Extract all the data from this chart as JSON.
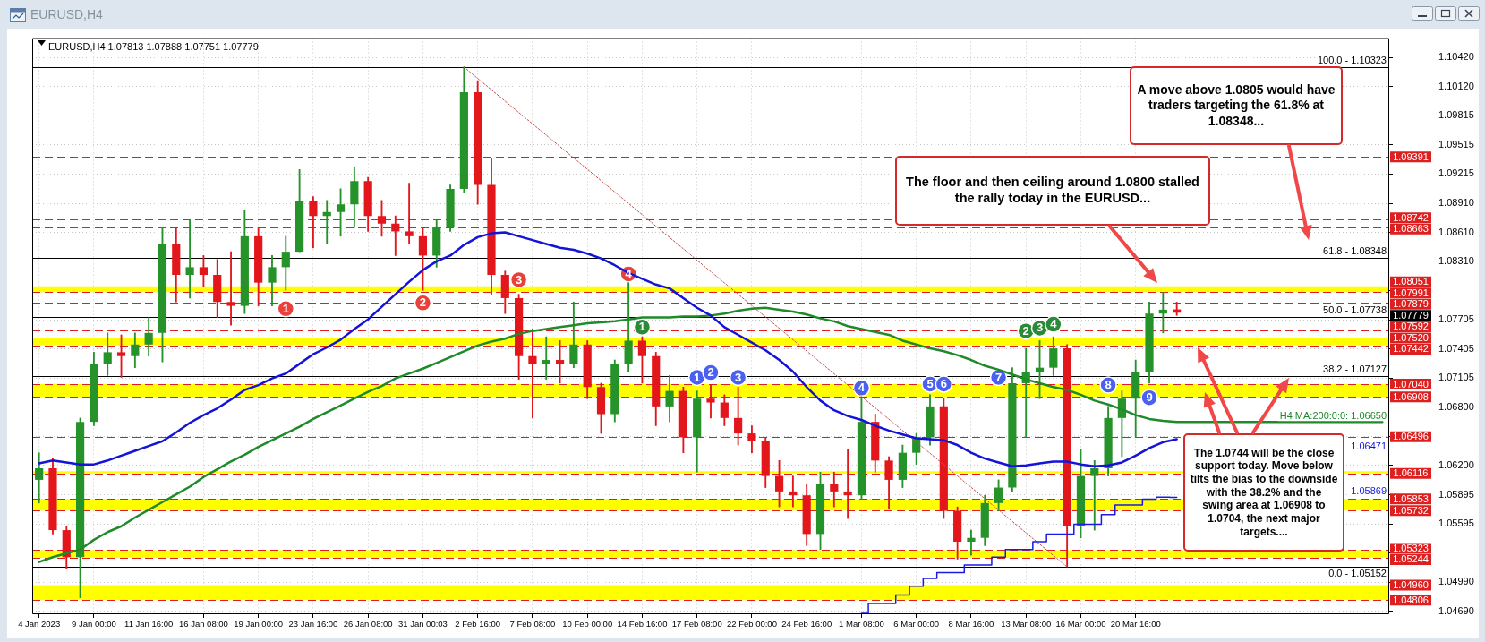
{
  "chart_data": {
    "type": "candlestick",
    "title": "EURUSD,H4",
    "subtitle": "EURUSD,H4 1.07813 1.07888 1.07751 1.07779",
    "categories": [
      "4 Jan 2023",
      null,
      null,
      null,
      "9 Jan 00:00",
      null,
      null,
      null,
      "11 Jan 16:00",
      null,
      null,
      null,
      "16 Jan 08:00",
      null,
      null,
      null,
      "19 Jan 00:00",
      null,
      null,
      null,
      "23 Jan 16:00",
      null,
      null,
      null,
      "26 Jan 08:00",
      null,
      null,
      null,
      "31 Jan 00:03",
      null,
      null,
      null,
      "2 Feb 16:00",
      null,
      null,
      null,
      "7 Feb 08:00",
      null,
      null,
      null,
      "10 Feb 00:00",
      null,
      null,
      null,
      "14 Feb 16:00",
      null,
      null,
      null,
      "17 Feb 08:00",
      null,
      null,
      null,
      "22 Feb 00:00",
      null,
      null,
      null,
      "24 Feb 16:00",
      null,
      null,
      null,
      "1 Mar 08:00",
      null,
      null,
      null,
      "6 Mar 00:00",
      null,
      null,
      null,
      "8 Mar 16:00",
      null,
      null,
      null,
      "13 Mar 08:00",
      null,
      null,
      null,
      "16 Mar 00:00",
      null,
      null,
      null,
      "20 Mar 16:00",
      null,
      null,
      null,
      null,
      null,
      null,
      null,
      null,
      null,
      null,
      null,
      null,
      null,
      null,
      null,
      null,
      null,
      null
    ],
    "ohlc": [
      [
        1.0605,
        1.0633,
        1.0581,
        1.0617
      ],
      [
        1.0617,
        1.0627,
        1.0549,
        1.0553
      ],
      [
        1.0553,
        1.0557,
        1.0513,
        1.0525
      ],
      [
        1.0525,
        1.0669,
        1.0483,
        1.0665
      ],
      [
        1.0665,
        1.0737,
        1.0661,
        1.0725
      ],
      [
        1.0725,
        1.0757,
        1.0713,
        1.0737
      ],
      [
        1.0737,
        1.0755,
        1.0711,
        1.0733
      ],
      [
        1.0733,
        1.0757,
        1.0721,
        1.0745
      ],
      [
        1.0745,
        1.0773,
        1.0733,
        1.0757
      ],
      [
        1.0757,
        1.0866,
        1.0727,
        1.0849
      ],
      [
        1.0849,
        1.0866,
        1.0789,
        1.0817
      ],
      [
        1.0817,
        1.0874,
        1.0793,
        1.0825
      ],
      [
        1.0825,
        1.0837,
        1.0805,
        1.0817
      ],
      [
        1.0817,
        1.0833,
        1.0773,
        1.0789
      ],
      [
        1.0789,
        1.0841,
        1.0765,
        1.0785
      ],
      [
        1.0785,
        1.0884,
        1.0777,
        1.0857
      ],
      [
        1.0857,
        1.0866,
        1.0785,
        1.0809
      ],
      [
        1.0809,
        1.0837,
        1.0785,
        1.0825
      ],
      [
        1.0825,
        1.0857,
        1.0801,
        1.0841
      ],
      [
        1.0841,
        1.0926,
        1.0841,
        1.0894
      ],
      [
        1.0894,
        1.0898,
        1.0845,
        1.0878
      ],
      [
        1.0878,
        1.0894,
        1.0849,
        1.0882
      ],
      [
        1.0882,
        1.0906,
        1.0857,
        1.089
      ],
      [
        1.089,
        1.0928,
        1.0866,
        1.0914
      ],
      [
        1.0914,
        1.0918,
        1.0862,
        1.0878
      ],
      [
        1.0878,
        1.0894,
        1.0857,
        1.087
      ],
      [
        1.087,
        1.0878,
        1.0837,
        1.0862
      ],
      [
        1.0862,
        1.0912,
        1.0849,
        1.0857
      ],
      [
        1.0857,
        1.0866,
        1.0801,
        1.0837
      ],
      [
        1.0837,
        1.0874,
        1.0825,
        1.0866
      ],
      [
        1.0866,
        1.091,
        1.0862,
        1.0906
      ],
      [
        1.0906,
        1.1032,
        1.0902,
        1.1006
      ],
      [
        1.1006,
        1.1018,
        1.089,
        1.091
      ],
      [
        1.091,
        1.0938,
        1.0797,
        1.0817
      ],
      [
        1.0817,
        1.0821,
        1.0777,
        1.0793
      ],
      [
        1.0793,
        1.0797,
        1.0709,
        1.0733
      ],
      [
        1.0733,
        1.0761,
        1.0669,
        1.0725
      ],
      [
        1.0725,
        1.0753,
        1.0709,
        1.0729
      ],
      [
        1.0729,
        1.0749,
        1.0705,
        1.0725
      ],
      [
        1.0725,
        1.0789,
        1.0721,
        1.0745
      ],
      [
        1.0745,
        1.0749,
        1.0689,
        1.0701
      ],
      [
        1.0701,
        1.0705,
        1.0653,
        1.0673
      ],
      [
        1.0673,
        1.0729,
        1.0665,
        1.0725
      ],
      [
        1.0725,
        1.0809,
        1.0717,
        1.0749
      ],
      [
        1.0749,
        1.0753,
        1.0705,
        1.0733
      ],
      [
        1.0733,
        1.0737,
        1.0661,
        1.0681
      ],
      [
        1.0681,
        1.0713,
        1.0665,
        1.0697
      ],
      [
        1.0697,
        1.0701,
        1.0633,
        1.0649
      ],
      [
        1.0649,
        1.0697,
        1.0613,
        1.0689
      ],
      [
        1.0689,
        1.0703,
        1.0669,
        1.0685
      ],
      [
        1.0685,
        1.0693,
        1.0661,
        1.0669
      ],
      [
        1.0669,
        1.0701,
        1.0641,
        1.0653
      ],
      [
        1.0653,
        1.0661,
        1.0633,
        1.0645
      ],
      [
        1.0645,
        1.0649,
        1.0597,
        1.0609
      ],
      [
        1.0609,
        1.0625,
        1.0577,
        1.0593
      ],
      [
        1.0593,
        1.0609,
        1.0577,
        1.0589
      ],
      [
        1.0589,
        1.0601,
        1.0537,
        1.0549
      ],
      [
        1.0549,
        1.0613,
        1.0533,
        1.0601
      ],
      [
        1.0601,
        1.0613,
        1.0577,
        1.0593
      ],
      [
        1.0593,
        1.0637,
        1.0565,
        1.0589
      ],
      [
        1.0589,
        1.0689,
        1.0585,
        1.0665
      ],
      [
        1.0665,
        1.0673,
        1.0613,
        1.0625
      ],
      [
        1.0625,
        1.0629,
        1.0575,
        1.0605
      ],
      [
        1.0605,
        1.0641,
        1.0597,
        1.0633
      ],
      [
        1.0633,
        1.0653,
        1.0621,
        1.0649
      ],
      [
        1.0649,
        1.0693,
        1.0641,
        1.0681
      ],
      [
        1.0681,
        1.0689,
        1.0565,
        1.0573
      ],
      [
        1.0573,
        1.0577,
        1.0523,
        1.0541
      ],
      [
        1.0541,
        1.0553,
        1.0527,
        1.0545
      ],
      [
        1.0545,
        1.0589,
        1.0537,
        1.0581
      ],
      [
        1.0581,
        1.0605,
        1.0573,
        1.0597
      ],
      [
        1.0597,
        1.0721,
        1.0593,
        1.0705
      ],
      [
        1.0705,
        1.0741,
        1.0649,
        1.0717
      ],
      [
        1.0717,
        1.0749,
        1.0689,
        1.0721
      ],
      [
        1.0721,
        1.0753,
        1.0713,
        1.0741
      ],
      [
        1.0741,
        1.0745,
        1.0515,
        1.0557
      ],
      [
        1.0557,
        1.0637,
        1.0545,
        1.0609
      ],
      [
        1.0609,
        1.0625,
        1.0553,
        1.0617
      ],
      [
        1.0617,
        1.0681,
        1.0609,
        1.0669
      ],
      [
        1.0669,
        1.0697,
        1.0629,
        1.0689
      ],
      [
        1.0689,
        1.0729,
        1.0649,
        1.0717
      ],
      [
        1.0717,
        1.0789,
        1.0705,
        1.0777
      ],
      [
        1.0777,
        1.0799,
        1.0757,
        1.0781
      ],
      [
        1.07813,
        1.07888,
        1.07751,
        1.07779
      ],
      null,
      null,
      null,
      null,
      null,
      null,
      null,
      null,
      null,
      null,
      null,
      null,
      null,
      null,
      null
    ],
    "colors": [
      "#26922a",
      "#e3161c",
      "#e3161c",
      "#26922a",
      "#26922a",
      "#26922a",
      "#e3161c",
      "#26922a",
      "#26922a",
      "#26922a",
      "#e3161c",
      "#26922a",
      "#e3161c",
      "#e3161c",
      "#e3161c",
      "#26922a",
      "#e3161c",
      "#26922a",
      "#26922a",
      "#26922a",
      "#e3161c",
      "#26922a",
      "#26922a",
      "#26922a",
      "#e3161c",
      "#e3161c",
      "#e3161c",
      "#e3161c",
      "#e3161c",
      "#26922a",
      "#26922a",
      "#26922a",
      "#e3161c",
      "#e3161c",
      "#e3161c",
      "#e3161c",
      "#e3161c",
      "#26922a",
      "#e3161c",
      "#26922a",
      "#e3161c",
      "#e3161c",
      "#26922a",
      "#26922a",
      "#e3161c",
      "#e3161c",
      "#26922a",
      "#e3161c",
      "#26922a",
      "#e3161c",
      "#e3161c",
      "#e3161c",
      "#e3161c",
      "#e3161c",
      "#e3161c",
      "#e3161c",
      "#e3161c",
      "#26922a",
      "#e3161c",
      "#e3161c",
      "#26922a",
      "#e3161c",
      "#e3161c",
      "#26922a",
      "#26922a",
      "#26922a",
      "#e3161c",
      "#e3161c",
      "#26922a",
      "#26922a",
      "#26922a",
      "#26922a",
      "#26922a",
      "#26922a",
      "#26922a",
      "#e3161c",
      "#26922a",
      "#26922a",
      "#26922a",
      "#26922a",
      "#26922a",
      "#26922a",
      "#26922a",
      "#e3161c",
      null,
      null,
      null,
      null,
      null,
      null,
      null,
      null,
      null,
      null,
      null,
      null,
      null,
      null,
      null
    ],
    "value_labels": [
      null,
      null,
      null,
      null,
      null,
      null,
      null,
      null,
      null,
      null,
      null,
      null,
      null,
      null,
      null,
      null,
      null,
      null,
      null,
      null,
      null,
      null,
      null,
      null,
      null,
      null,
      null,
      null,
      null,
      null,
      null,
      null,
      null,
      null,
      null,
      null,
      null,
      null,
      null,
      null,
      null,
      null,
      null,
      null,
      null,
      null,
      null,
      null,
      null,
      null,
      null,
      null,
      null,
      null,
      null,
      null,
      null,
      null,
      null,
      null,
      null,
      null,
      null,
      null,
      null,
      null,
      null,
      null,
      null,
      null,
      null,
      null,
      null,
      null,
      null,
      null,
      null,
      null,
      null,
      null,
      null,
      null,
      null,
      "1.07779",
      null,
      null,
      null,
      null,
      null,
      null,
      null,
      null,
      null,
      null,
      null,
      null,
      null,
      null,
      null
    ],
    "series": [
      {
        "type": "line",
        "color": "#1414d8",
        "values": [
          1.0622,
          1.0625,
          1.0623,
          1.0621,
          1.0621,
          1.0625,
          1.063,
          1.0635,
          1.064,
          1.0645,
          1.0654,
          1.0664,
          1.0672,
          1.0679,
          1.0688,
          1.0698,
          1.0703,
          1.071,
          1.0715,
          1.0725,
          1.0735,
          1.0742,
          1.075,
          1.0761,
          1.0771,
          1.0784,
          1.0797,
          1.081,
          1.0822,
          1.0831,
          1.0837,
          1.0848,
          1.0856,
          1.086,
          1.0861,
          1.0857,
          1.0853,
          1.0849,
          1.0845,
          1.0843,
          1.0839,
          1.0834,
          1.0827,
          1.0819,
          1.0813,
          1.0807,
          1.0803,
          1.0793,
          1.0783,
          1.0775,
          1.0763,
          1.0755,
          1.0747,
          1.0739,
          1.0729,
          1.0717,
          1.0701,
          1.0687,
          1.0677,
          1.0671,
          1.0667,
          1.0661,
          1.0656,
          1.0652,
          1.0648,
          1.0647,
          1.0646,
          1.0641,
          1.0633,
          1.0627,
          1.0623,
          1.0619,
          1.062,
          1.0622,
          1.0624,
          1.0624,
          1.0621,
          1.0619,
          1.062,
          1.0623,
          1.063,
          1.0638,
          1.0644,
          1.06471,
          null,
          null,
          null,
          null,
          null,
          null,
          null,
          null,
          null,
          null,
          null,
          null,
          null,
          null,
          null
        ]
      },
      {
        "type": "line",
        "color": "#1f8a2a",
        "values": [
          1.052,
          1.0525,
          1.0529,
          1.0533,
          1.0543,
          1.0551,
          1.0557,
          1.0566,
          1.0574,
          1.0582,
          1.059,
          1.0598,
          1.0608,
          1.0616,
          1.0624,
          1.0631,
          1.0639,
          1.0646,
          1.0653,
          1.066,
          1.0668,
          1.0675,
          1.0682,
          1.0689,
          1.0696,
          1.0702,
          1.071,
          1.0715,
          1.072,
          1.0726,
          1.0732,
          1.0738,
          1.0744,
          1.0748,
          1.0751,
          1.0756,
          1.0759,
          1.0761,
          1.0763,
          1.0765,
          1.0767,
          1.0768,
          1.0769,
          1.0771,
          1.0773,
          1.0773,
          1.0773,
          1.0774,
          1.0774,
          1.0775,
          1.0777,
          1.078,
          1.0782,
          1.0783,
          1.0781,
          1.0779,
          1.0776,
          1.0772,
          1.0769,
          1.0764,
          1.0761,
          1.0758,
          1.0755,
          1.0749,
          1.0745,
          1.0741,
          1.0738,
          1.0734,
          1.0729,
          1.0723,
          1.0719,
          1.0714,
          1.0709,
          1.0705,
          1.0701,
          1.0698,
          1.0693,
          1.0687,
          1.0683,
          1.0678,
          1.0672,
          1.0668,
          1.0666,
          1.0665,
          1.0665,
          1.0665,
          1.0665,
          1.0665,
          1.0665,
          1.0665,
          1.0665,
          1.0665,
          1.0665,
          1.0665,
          1.0665,
          1.0665,
          1.0665,
          1.0665,
          1.0665
        ]
      },
      {
        "type": "step",
        "color": "#1a1ae6",
        "values": [
          null,
          null,
          null,
          null,
          null,
          null,
          null,
          null,
          null,
          null,
          null,
          null,
          null,
          null,
          null,
          null,
          null,
          null,
          null,
          null,
          null,
          null,
          null,
          null,
          null,
          null,
          null,
          null,
          null,
          null,
          null,
          null,
          null,
          null,
          null,
          null,
          null,
          null,
          null,
          null,
          null,
          null,
          null,
          null,
          null,
          null,
          null,
          null,
          null,
          null,
          null,
          null,
          null,
          null,
          null,
          null,
          null,
          null,
          null,
          null,
          1.0467,
          1.0477,
          1.0477,
          1.0486,
          1.0495,
          1.0503,
          1.0509,
          1.0509,
          1.0517,
          1.0517,
          1.0525,
          1.0533,
          1.0533,
          1.0541,
          1.0549,
          1.0549,
          1.0559,
          1.0559,
          1.0569,
          1.0579,
          1.0579,
          1.0585,
          1.0587,
          1.05869,
          null,
          null,
          null,
          null,
          null,
          null,
          null,
          null,
          null,
          null,
          null,
          null,
          null,
          null,
          null
        ]
      },
      {
        "type": "line",
        "color": "#c0504d",
        "line_style": "dotted",
        "values": [
          null,
          null,
          null,
          null,
          null,
          null,
          null,
          null,
          null,
          null,
          null,
          null,
          null,
          null,
          null,
          null,
          null,
          null,
          null,
          null,
          null,
          null,
          null,
          null,
          null,
          null,
          null,
          null,
          null,
          null,
          null,
          1.1032,
          null,
          null,
          null,
          null,
          null,
          null,
          null,
          null,
          null,
          null,
          null,
          null,
          null,
          null,
          null,
          null,
          null,
          null,
          null,
          null,
          null,
          null,
          null,
          null,
          null,
          null,
          null,
          null,
          null,
          null,
          null,
          null,
          null,
          null,
          null,
          null,
          null,
          null,
          null,
          null,
          null,
          null,
          null,
          1.0515,
          null,
          null,
          null,
          null,
          null,
          null,
          null,
          null,
          null,
          null,
          null,
          null,
          null,
          null,
          null,
          null,
          null,
          null,
          null,
          null,
          null,
          null,
          null
        ]
      },
      {
        "type": "scatter",
        "color": "#e8413c",
        "marker": "circle",
        "values": [
          null,
          null,
          null,
          null,
          null,
          null,
          null,
          null,
          null,
          null,
          null,
          null,
          null,
          null,
          null,
          null,
          null,
          null,
          1.0782,
          null,
          null,
          null,
          null,
          null,
          null,
          null,
          null,
          null,
          1.0788,
          null,
          null,
          null,
          null,
          null,
          null,
          1.0812,
          null,
          null,
          null,
          null,
          null,
          null,
          null,
          1.0818,
          null,
          null,
          null,
          null,
          null,
          null,
          null,
          null,
          null,
          null,
          null,
          null,
          null,
          null,
          null,
          null,
          null,
          null,
          null,
          null,
          null,
          null,
          null,
          null,
          null,
          null,
          null,
          null,
          null,
          null,
          null,
          null,
          null,
          null,
          null,
          null,
          null,
          null,
          null,
          null,
          null,
          null,
          null,
          null,
          null,
          null,
          null,
          null,
          null,
          null,
          null,
          null,
          null,
          null,
          null
        ]
      },
      {
        "type": "scatter",
        "color": "#2a8a38",
        "marker": "circle",
        "values": [
          null,
          null,
          null,
          null,
          null,
          null,
          null,
          null,
          null,
          null,
          null,
          null,
          null,
          null,
          null,
          null,
          null,
          null,
          null,
          null,
          null,
          null,
          null,
          null,
          null,
          null,
          null,
          null,
          null,
          null,
          null,
          null,
          null,
          null,
          null,
          null,
          null,
          null,
          null,
          null,
          null,
          null,
          null,
          null,
          1.0763,
          null,
          null,
          null,
          null,
          null,
          null,
          null,
          null,
          null,
          null,
          null,
          null,
          null,
          null,
          null,
          null,
          null,
          null,
          null,
          null,
          null,
          null,
          null,
          null,
          null,
          null,
          null,
          1.0759,
          1.0762,
          1.0766,
          null,
          null,
          null,
          null,
          null,
          null,
          null,
          null,
          null,
          null,
          null,
          null,
          null,
          null,
          null,
          null,
          null,
          null,
          null,
          null,
          null,
          null,
          null,
          null
        ]
      },
      {
        "type": "scatter",
        "color": "#4a60ef",
        "marker": "circle",
        "values": [
          null,
          null,
          null,
          null,
          null,
          null,
          null,
          null,
          null,
          null,
          null,
          null,
          null,
          null,
          null,
          null,
          null,
          null,
          null,
          null,
          null,
          null,
          null,
          null,
          null,
          null,
          null,
          null,
          null,
          null,
          null,
          null,
          null,
          null,
          null,
          null,
          null,
          null,
          null,
          null,
          null,
          null,
          null,
          null,
          null,
          null,
          null,
          null,
          1.0711,
          1.0716,
          null,
          1.0711,
          null,
          null,
          null,
          null,
          null,
          null,
          null,
          null,
          1.07,
          null,
          null,
          null,
          null,
          1.0704,
          1.0704,
          null,
          null,
          null,
          1.0711,
          null,
          null,
          null,
          null,
          null,
          null,
          null,
          1.0703,
          null,
          null,
          1.069,
          null,
          null,
          null,
          null,
          null,
          null,
          null,
          null,
          null,
          null,
          null,
          null,
          null,
          null,
          null,
          null,
          null
        ]
      }
    ],
    "ylim": [
      1.0466,
      1.1062
    ],
    "yticks": [
      {
        "value": 1.1042,
        "label": "1.10420"
      },
      {
        "value": 1.1012,
        "label": "1.10120"
      },
      {
        "value": 1.09815,
        "label": "1.09815"
      },
      {
        "value": 1.09515,
        "label": "1.09515"
      },
      {
        "value": 1.09215,
        "label": "1.09215"
      },
      {
        "value": 1.0891,
        "label": "1.08910"
      },
      {
        "value": 1.0861,
        "label": "1.08610"
      },
      {
        "value": 1.0831,
        "label": "1.08310"
      },
      {
        "value": 1.08005,
        "label": null
      },
      {
        "value": 1.07705,
        "label": "1.07705"
      },
      {
        "value": 1.07405,
        "label": "1.07405"
      },
      {
        "value": 1.07105,
        "label": "1.07105"
      },
      {
        "value": 1.068,
        "label": "1.06800"
      },
      {
        "value": 1.065,
        "label": null
      },
      {
        "value": 1.062,
        "label": "1.06200"
      },
      {
        "value": 1.05895,
        "label": "1.05895"
      },
      {
        "value": 1.05595,
        "label": "1.05595"
      },
      {
        "value": 1.0529,
        "label": null
      },
      {
        "value": 1.0499,
        "label": "1.04990"
      },
      {
        "value": 1.0469,
        "label": "1.04690"
      }
    ],
    "grid": true,
    "ref_lines": [
      {
        "axis": "y",
        "value": 1.10323,
        "color": "#000000",
        "line_style": "solid"
      },
      {
        "axis": "y",
        "value": 1.08348,
        "color": "#000000",
        "line_style": "solid"
      },
      {
        "axis": "y",
        "value": 1.07738,
        "color": "#000000",
        "line_style": "solid"
      },
      {
        "axis": "y",
        "value": 1.07127,
        "color": "#000000",
        "line_style": "solid"
      },
      {
        "axis": "y",
        "value": 1.05152,
        "color": "#000000",
        "line_style": "solid"
      },
      {
        "axis": "y",
        "value": 1.09391,
        "label": "1.09391",
        "color": "#dd1f1f",
        "line_style": "dashed"
      },
      {
        "axis": "y",
        "value": 1.08742,
        "label": "1.08742",
        "color": "#dd1f1f",
        "line_style": "dashed"
      },
      {
        "axis": "y",
        "value": 1.08663,
        "label": "1.08663",
        "color": "#dd1f1f",
        "line_style": "dashed"
      },
      {
        "axis": "y",
        "value": 1.08051,
        "label": "1.08051",
        "color": "#dd1f1f",
        "line_style": "dashed"
      },
      {
        "axis": "y",
        "value": 1.07991,
        "label": "1.07991",
        "color": "#dd1f1f",
        "line_style": "dashed"
      },
      {
        "axis": "y",
        "value": 1.07879,
        "label": "1.07879",
        "color": "#dd1f1f",
        "line_style": "dashed"
      },
      {
        "axis": "y",
        "value": 1.07592,
        "label": "1.07592",
        "color": "#dd1f1f",
        "line_style": "dashed"
      },
      {
        "axis": "y",
        "value": 1.0752,
        "label": "1.07520",
        "color": "#dd1f1f",
        "line_style": "dashed"
      },
      {
        "axis": "y",
        "value": 1.07442,
        "label": "1.07442",
        "color": "#dd1f1f",
        "line_style": "dashed"
      },
      {
        "axis": "y",
        "value": 1.0704,
        "label": "1.07040",
        "color": "#dd1f1f",
        "line_style": "dashed"
      },
      {
        "axis": "y",
        "value": 1.06908,
        "label": "1.06908",
        "color": "#dd1f1f",
        "line_style": "dashed"
      },
      {
        "axis": "y",
        "value": 1.06496,
        "label": "1.06496",
        "color": "#dd1f1f",
        "line_style": "dashed"
      },
      {
        "axis": "y",
        "value": 1.06116,
        "label": "1.06116",
        "color": "#dd1f1f",
        "line_style": "dashed"
      },
      {
        "axis": "y",
        "value": 1.05853,
        "label": "1.05853",
        "color": "#dd1f1f",
        "line_style": "dashed"
      },
      {
        "axis": "y",
        "value": 1.05732,
        "label": "1.05732",
        "color": "#dd1f1f",
        "line_style": "dashed"
      },
      {
        "axis": "y",
        "value": 1.05323,
        "label": "1.05323",
        "color": "#dd1f1f",
        "line_style": "dashed"
      },
      {
        "axis": "y",
        "value": 1.05244,
        "label": "1.05244",
        "color": "#dd1f1f",
        "line_style": "dashed"
      },
      {
        "axis": "y",
        "value": 1.0496,
        "label": "1.04960",
        "color": "#dd1f1f",
        "line_style": "dashed"
      },
      {
        "axis": "y",
        "value": 1.04806,
        "label": "1.04806",
        "color": "#dd1f1f",
        "line_style": "dashed"
      }
    ],
    "bands": [
      {
        "axis": "y",
        "from": 1.07991,
        "to": 1.08051,
        "color": "#ffff00"
      },
      {
        "axis": "y",
        "from": 1.07442,
        "to": 1.0752,
        "color": "#ffff00"
      },
      {
        "axis": "y",
        "from": 1.06908,
        "to": 1.0704,
        "color": "#ffff00"
      },
      {
        "axis": "y",
        "from": 1.06116,
        "to": 1.0614,
        "color": "#ffff00"
      },
      {
        "axis": "y",
        "from": 1.05732,
        "to": 1.05853,
        "color": "#ffff00"
      },
      {
        "axis": "y",
        "from": 1.05244,
        "to": 1.05323,
        "color": "#ffff00"
      },
      {
        "axis": "y",
        "from": 1.04806,
        "to": 1.0496,
        "color": "#ffff00"
      }
    ],
    "annotations": [
      "A move above 1.0805 would have traders targeting the 61.8% at 1.08348...",
      "The floor and then ceiling around 1.0800 stalled the rally today in the EURUSD...",
      "The 1.0744 will be the close support today. Move below tilts the bias to the downside with the 38.2% and the swing area at 1.06908 to 1.0704, the next major targets....",
      {
        "text": "100.0 - 1.10323",
        "y": 1.10323
      },
      {
        "text": "61.8 - 1.08348",
        "y": 1.08348
      },
      {
        "text": "50.0 - 1.07738",
        "y": 1.07738
      },
      {
        "text": "38.2 - 1.07127",
        "y": 1.07127
      },
      {
        "text": "0.0 - 1.05152",
        "y": 1.05152
      },
      {
        "text": "H4 MA:200:0:0: 1.06650",
        "y": 1.0665
      },
      {
        "text": "1.06471",
        "y": 1.06471
      },
      {
        "text": "1.05869",
        "y": 1.05869
      },
      {
        "text": "1",
        "y": 1.0782
      },
      {
        "text": "2",
        "y": 1.0788
      },
      {
        "text": "3",
        "y": 1.0812
      },
      {
        "text": "4",
        "y": 1.0818
      },
      {
        "text": "1",
        "y": 1.0763
      },
      {
        "text": "2",
        "y": 1.0759
      },
      {
        "text": "3",
        "y": 1.0762
      },
      {
        "text": "4",
        "y": 1.0766
      },
      {
        "text": "1",
        "y": 1.0711
      },
      {
        "text": "2",
        "y": 1.0716
      },
      {
        "text": "3",
        "y": 1.0711
      },
      {
        "text": "4",
        "y": 1.07
      },
      {
        "text": "5",
        "y": 1.0704
      },
      {
        "text": "6",
        "y": 1.0704
      },
      {
        "text": "7",
        "y": 1.0711
      },
      {
        "text": "8",
        "y": 1.0703
      },
      {
        "text": "9",
        "y": 1.069
      }
    ]
  }
}
